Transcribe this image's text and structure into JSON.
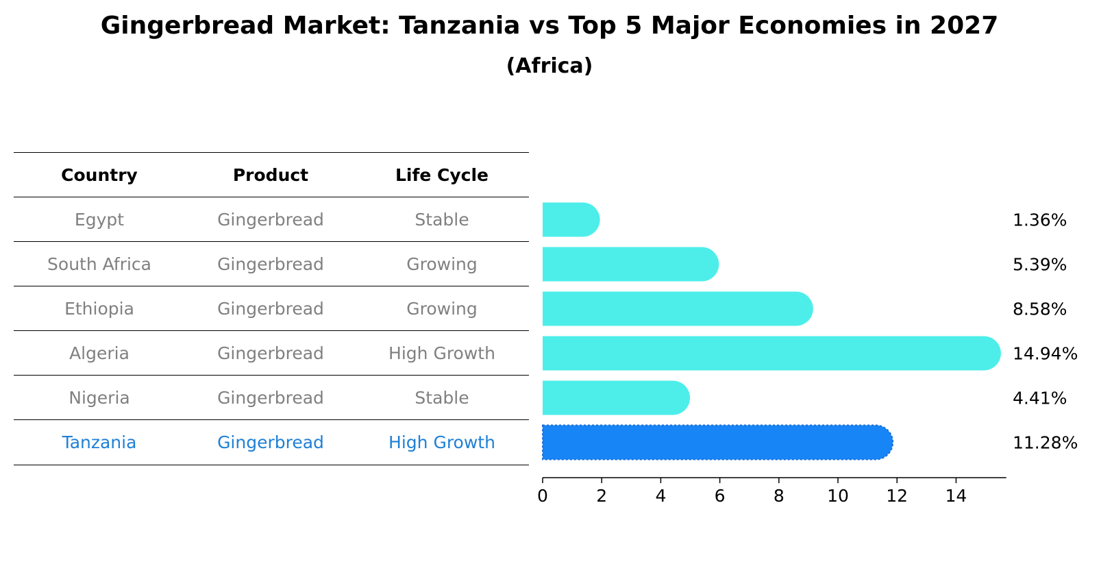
{
  "title": "Gingerbread Market: Tanzania vs Top 5 Major Economies in 2027",
  "subtitle": "(Africa)",
  "table": {
    "headers": [
      "Country",
      "Product",
      "Life Cycle"
    ],
    "rows": [
      {
        "country": "Egypt",
        "product": "Gingerbread",
        "life_cycle": "Stable"
      },
      {
        "country": "South Africa",
        "product": "Gingerbread",
        "life_cycle": "Growing"
      },
      {
        "country": "Ethiopia",
        "product": "Gingerbread",
        "life_cycle": "Growing"
      },
      {
        "country": "Algeria",
        "product": "Gingerbread",
        "life_cycle": "High Growth"
      },
      {
        "country": "Nigeria",
        "product": "Gingerbread",
        "life_cycle": "Stable"
      },
      {
        "country": "Tanzania",
        "product": "Gingerbread",
        "life_cycle": "High Growth"
      }
    ]
  },
  "colors": {
    "bar": "#4deeea",
    "highlight_bar": "#1785f5",
    "highlight_text": "#1f80d6",
    "muted_text": "#808080"
  },
  "chart_data": {
    "type": "bar",
    "orientation": "horizontal",
    "categories": [
      "Egypt",
      "South Africa",
      "Ethiopia",
      "Algeria",
      "Nigeria",
      "Tanzania"
    ],
    "values": [
      1.36,
      5.39,
      8.58,
      14.94,
      4.41,
      11.28
    ],
    "value_labels": [
      "1.36%",
      "5.39%",
      "8.58%",
      "14.94%",
      "4.41%",
      "11.28%"
    ],
    "highlight": "Tanzania",
    "xlim": [
      0,
      15.7
    ],
    "xticks": [
      0,
      2,
      4,
      6,
      8,
      10,
      12,
      14
    ],
    "xtick_labels": [
      "0",
      "2",
      "4",
      "6",
      "8",
      "10",
      "12",
      "14"
    ],
    "grid": false,
    "legend": "none"
  }
}
